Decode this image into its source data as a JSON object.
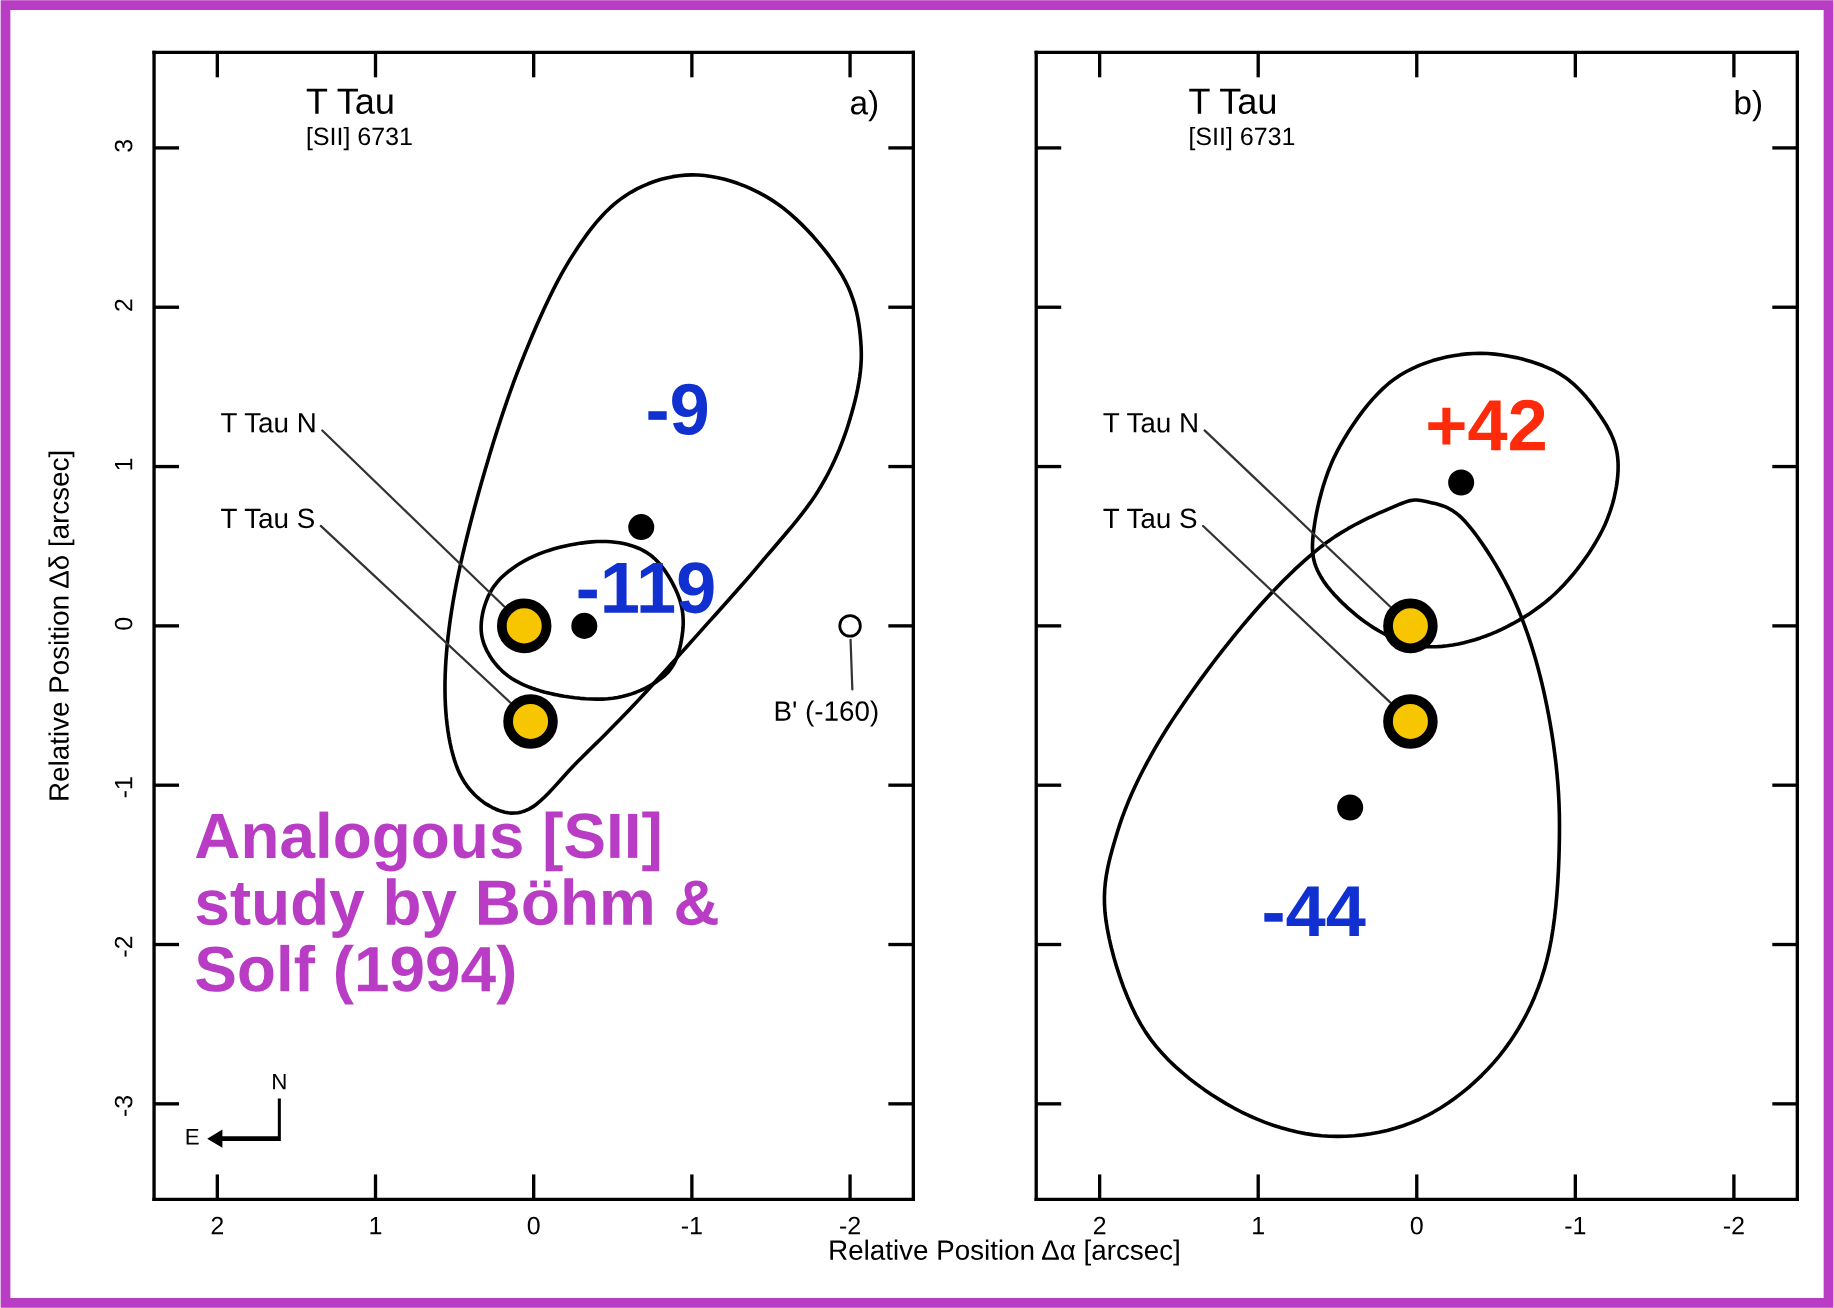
{
  "chart_data": [
    {
      "type": "scatter",
      "title": "T Tau",
      "subtitle": "[SII] 6731",
      "xlabel": "Relative Position Δα [arcsec]",
      "ylabel": "Relative Position Δδ [arcsec]",
      "xlim": [
        2.4,
        -2.4
      ],
      "ylim": [
        -3.6,
        3.6
      ],
      "xticks": [
        2,
        1,
        0,
        -1,
        -2
      ],
      "yticks": [
        -3,
        -2,
        -1,
        0,
        1,
        2,
        3
      ],
      "grid": false,
      "legend": false,
      "series": [
        {
          "marker": "circle",
          "color": "#000000",
          "x": [
            -0.68,
            -0.32
          ],
          "values": [
            0.62,
            0.0
          ]
        },
        {
          "marker": "circle",
          "color": "#ffffff",
          "name": "B' (-160)",
          "x": [
            -2.0
          ],
          "values": [
            0.0
          ]
        },
        {
          "marker": "circle",
          "color": "#f7c600",
          "name": "T Tau N",
          "x": [
            0.06
          ],
          "values": [
            0.0
          ]
        },
        {
          "marker": "circle",
          "color": "#f7c600",
          "name": "T Tau S",
          "x": [
            0.02
          ],
          "values": [
            -0.6
          ]
        }
      ],
      "annotations": [
        "a)",
        "Analogous [SII]\nstudy by Böhm &\nSolf (1994)",
        "N",
        "E",
        "-9",
        "-119"
      ]
    },
    {
      "type": "scatter",
      "title": "T Tau",
      "subtitle": "[SII] 6731",
      "xlim": [
        2.4,
        -2.4
      ],
      "ylim": [
        -3.6,
        3.6
      ],
      "xticks": [
        2,
        1,
        0,
        -1,
        -2
      ],
      "yticks": [
        -3,
        -2,
        -1,
        0,
        1,
        2,
        3
      ],
      "grid": false,
      "legend": false,
      "tick_labels": "x",
      "series": [
        {
          "marker": "circle",
          "color": "#000000",
          "x": [
            -0.28,
            0.42
          ],
          "values": [
            0.9,
            -1.14
          ]
        },
        {
          "marker": "circle",
          "color": "#f7c600",
          "name": "T Tau N",
          "x": [
            0.04
          ],
          "values": [
            0.0
          ]
        },
        {
          "marker": "circle",
          "color": "#f7c600",
          "name": "T Tau S",
          "x": [
            0.04
          ],
          "values": [
            -0.6
          ]
        }
      ],
      "annotations": [
        "b)",
        "+42",
        "-44"
      ]
    }
  ]
}
